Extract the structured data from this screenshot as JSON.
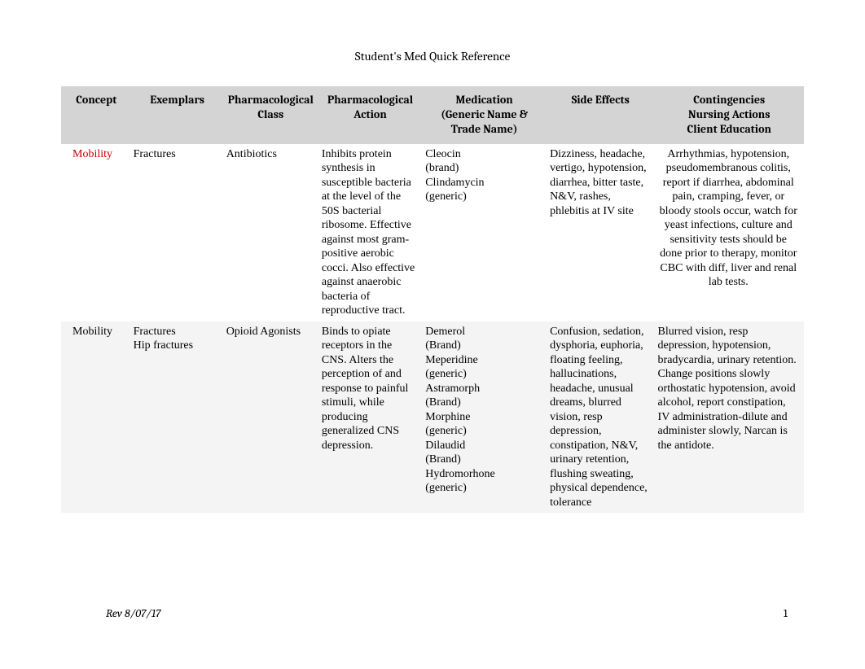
{
  "title": "Student's Med Quick Reference",
  "columns": {
    "c0": "Concept",
    "c1": "Exemplars",
    "c2": "Pharmacological\nClass",
    "c3": "Pharmacological\nAction",
    "c4": "Medication\n(Generic Name &\nTrade Name)",
    "c5": "Side Effects",
    "c6": "Contingencies\nNursing Actions\nClient Education"
  },
  "rows": [
    {
      "concept": "Mobility",
      "concept_color": "#c00000",
      "exemplars": "Fractures",
      "pharm_class": "Antibiotics",
      "pharm_action": "Inhibits protein synthesis in susceptible bacteria at the level of the 50S bacterial ribosome. Effective against most gram-positive aerobic cocci. Also effective against anaerobic bacteria of reproductive tract.",
      "medication": "Cleocin\n (brand)\nClindamycin\n(generic)",
      "side_effects": "Dizziness, headache, vertigo, hypotension, diarrhea, bitter taste, N&V, rashes, phlebitis at IV site",
      "contingencies": "Arrhythmias, hypotension, pseudomembranous colitis, report if diarrhea, abdominal pain, cramping, fever, or bloody stools occur, watch for yeast infections, culture and sensitivity tests should be done prior to therapy, monitor CBC with diff, liver and renal lab tests."
    },
    {
      "concept": "Mobility",
      "concept_color": "#000000",
      "exemplars": "Fractures\nHip fractures",
      "pharm_class": "Opioid Agonists",
      "pharm_action": "Binds to opiate receptors in the CNS. Alters the perception of and response to painful stimuli, while producing generalized CNS depression.",
      "medication": "Demerol\n(Brand)\nMeperidine\n (generic)\nAstramorph\n (Brand)\nMorphine\n(generic)\nDilaudid\n (Brand)\nHydromorhone\n(generic)",
      "side_effects": "Confusion, sedation, dysphoria, euphoria, floating feeling, hallucinations, headache, unusual dreams, blurred vision, resp depression, constipation, N&V, urinary retention, flushing sweating, physical dependence, tolerance",
      "contingencies": "Blurred vision, resp depression, hypotension, bradycardia, urinary retention. Change positions slowly orthostatic hypotension, avoid alcohol, report constipation, IV administration-dilute and administer slowly, Narcan is the antidote."
    }
  ],
  "footer": {
    "rev": "Rev 8/07/17",
    "page": "1"
  },
  "styles": {
    "header_bg": "#d4d4d4",
    "alt_row_bg": "#f4f4f4",
    "title_fontsize": 15,
    "header_fontsize": 14,
    "cell_fontsize": 14
  }
}
